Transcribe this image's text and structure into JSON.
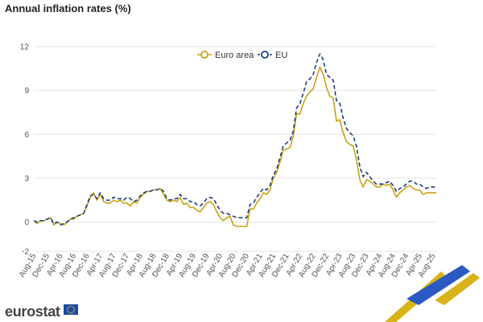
{
  "title": "Annual inflation rates (%)",
  "brand": "eurostat",
  "colors": {
    "euro_area": "#c9a20f",
    "eu": "#1c3f80",
    "grid": "#e3e3e3",
    "flag": "#1a4aa3",
    "stripe_gold": "#d8b319",
    "stripe_blue": "#2b59c3"
  },
  "chart_data": {
    "type": "line",
    "title": "Annual inflation rates (%)",
    "xlabel": "",
    "ylabel": "",
    "ylim": [
      -2,
      12
    ],
    "yticks": [
      -2,
      0,
      3,
      6,
      9,
      12
    ],
    "grid": true,
    "legend": "top-center",
    "x_tick_labels": [
      "Aug-15",
      "Dec-15",
      "Apr-16",
      "Aug-16",
      "Dec-16",
      "Apr-17",
      "Aug-17",
      "Dec-17",
      "Apr-18",
      "Aug-18",
      "Dec-18",
      "Apr-19",
      "Aug-19",
      "Dec-19",
      "Apr-20",
      "Aug-20",
      "Dec-20",
      "Apr-21",
      "Aug-21",
      "Dec-21",
      "Apr-22",
      "Aug-22",
      "Dec-22",
      "Apr-23",
      "Aug-23",
      "Dec-23",
      "Apr-24",
      "Aug-24",
      "Dec-24",
      "Apr-25",
      "Aug-25"
    ],
    "x_start": "Aug-15",
    "x_end": "Aug-25",
    "series": [
      {
        "name": "Euro area",
        "style": "solid",
        "values": [
          0.1,
          -0.1,
          0.1,
          0.1,
          0.2,
          0.3,
          -0.2,
          0.0,
          -0.1,
          -0.2,
          0.0,
          0.2,
          0.2,
          0.4,
          0.5,
          0.6,
          1.1,
          1.7,
          2.0,
          1.5,
          1.9,
          1.4,
          1.3,
          1.3,
          1.5,
          1.4,
          1.5,
          1.3,
          1.3,
          1.1,
          1.4,
          1.3,
          1.7,
          1.9,
          2.1,
          2.1,
          2.2,
          2.2,
          2.3,
          1.9,
          1.5,
          1.4,
          1.5,
          1.4,
          1.7,
          1.2,
          1.3,
          1.0,
          1.0,
          0.8,
          0.7,
          1.0,
          1.3,
          1.4,
          1.2,
          0.7,
          0.3,
          0.1,
          0.3,
          0.4,
          -0.2,
          -0.3,
          -0.3,
          -0.3,
          -0.3,
          0.9,
          0.9,
          1.3,
          1.6,
          2.0,
          1.9,
          2.2,
          3.0,
          3.4,
          4.1,
          4.9,
          5.0,
          5.1,
          5.9,
          7.4,
          7.4,
          8.1,
          8.6,
          8.9,
          9.1,
          9.9,
          10.6,
          10.1,
          9.2,
          8.6,
          8.5,
          6.9,
          7.0,
          6.1,
          5.5,
          5.3,
          5.2,
          4.3,
          2.9,
          2.4,
          2.9,
          2.8,
          2.6,
          2.4,
          2.4,
          2.6,
          2.5,
          2.6,
          2.2,
          1.7,
          2.0,
          2.2,
          2.4,
          2.5,
          2.3,
          2.2,
          2.2,
          1.9,
          2.0,
          2.0,
          2.0,
          2.0
        ]
      },
      {
        "name": "EU",
        "style": "dashed",
        "values": [
          0.1,
          0.0,
          0.1,
          0.1,
          0.2,
          0.3,
          -0.1,
          0.0,
          -0.2,
          -0.1,
          0.0,
          0.2,
          0.3,
          0.4,
          0.5,
          0.6,
          1.2,
          1.8,
          1.9,
          1.6,
          2.0,
          1.6,
          1.5,
          1.5,
          1.7,
          1.6,
          1.6,
          1.5,
          1.7,
          1.6,
          1.4,
          1.5,
          1.8,
          2.0,
          2.1,
          2.1,
          2.2,
          2.2,
          2.3,
          2.1,
          1.6,
          1.5,
          1.6,
          1.6,
          1.9,
          1.6,
          1.6,
          1.4,
          1.4,
          1.2,
          1.1,
          1.3,
          1.6,
          1.7,
          1.6,
          1.2,
          0.8,
          0.6,
          0.6,
          0.5,
          0.4,
          0.3,
          0.3,
          0.3,
          0.3,
          1.2,
          1.3,
          1.7,
          2.0,
          2.3,
          2.2,
          2.5,
          3.2,
          3.6,
          4.4,
          5.2,
          5.4,
          5.6,
          6.2,
          7.8,
          8.1,
          8.8,
          9.6,
          9.8,
          10.1,
          10.9,
          11.5,
          11.1,
          10.1,
          9.9,
          9.7,
          8.3,
          8.1,
          7.1,
          6.4,
          6.1,
          5.9,
          5.2,
          3.8,
          3.1,
          3.4,
          3.1,
          2.8,
          2.6,
          2.6,
          2.6,
          2.7,
          2.8,
          2.5,
          2.1,
          2.3,
          2.4,
          2.6,
          2.8,
          2.8,
          2.6,
          2.6,
          2.4,
          2.3,
          2.4,
          2.4,
          2.4
        ]
      }
    ]
  }
}
